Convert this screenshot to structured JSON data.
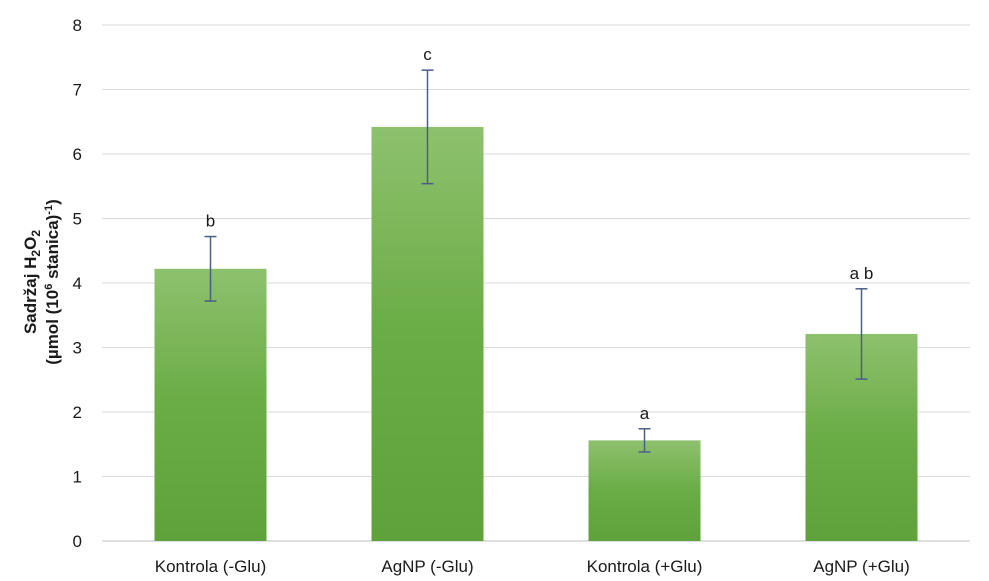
{
  "chart_data": {
    "type": "bar",
    "categories": [
      "Kontrola (-Glu)",
      "AgNP (-Glu)",
      "Kontrola (+Glu)",
      "AgNP (+Glu)"
    ],
    "values": [
      4.22,
      6.42,
      1.56,
      3.21
    ],
    "error": [
      0.5,
      0.88,
      0.18,
      0.7
    ],
    "significance_labels": [
      "b",
      "c",
      "a",
      "a b"
    ],
    "ylabel_line1": "Sadržaj H",
    "ylabel_line2": "(µmol (10",
    "ylim": [
      0,
      8
    ],
    "yticks": [
      0,
      1,
      2,
      3,
      4,
      5,
      6,
      7,
      8
    ],
    "grid": true,
    "bar_color": "#6aac45",
    "bar_color_light": "#8ec16e",
    "error_bar_color": "#4a5f86",
    "grid_color": "#d9d9d9"
  }
}
